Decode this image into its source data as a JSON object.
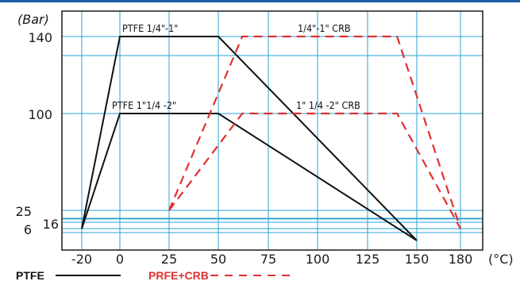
{
  "chart_data": {
    "type": "line",
    "y_unit": "(Bar)",
    "x_unit": "(°C)",
    "x_ticks": [
      "-20",
      "0",
      "25",
      "50",
      "75",
      "100",
      "125",
      "150",
      "180"
    ],
    "y_ticks": [
      "140",
      "100",
      "25",
      "16",
      "6"
    ],
    "xlim": [
      -20,
      180
    ],
    "ylim": [
      0,
      150
    ],
    "colors": {
      "ptfe": "#111111",
      "crb": "#e03030",
      "grid": "#29a3d6",
      "frame": "#1a1a1a",
      "top_rule": "#1f5fa8"
    },
    "series": [
      {
        "name": "PTFE 1/4\"-1\"",
        "group": "ptfe",
        "points": [
          [
            -20,
            6
          ],
          [
            0,
            140
          ],
          [
            50,
            140
          ],
          [
            150,
            0
          ]
        ]
      },
      {
        "name": "PTFE 1\"1/4 -2\"",
        "group": "ptfe",
        "points": [
          [
            -20,
            6
          ],
          [
            0,
            100
          ],
          [
            50,
            100
          ],
          [
            150,
            0
          ]
        ]
      },
      {
        "name": "1/4\"-1\" CRB",
        "group": "crb",
        "points": [
          [
            25,
            25
          ],
          [
            62,
            140
          ],
          [
            140,
            140
          ],
          [
            180,
            6
          ]
        ]
      },
      {
        "name": "1\" 1/4 -2\" CRB",
        "group": "crb",
        "points": [
          [
            25,
            25
          ],
          [
            62,
            100
          ],
          [
            140,
            100
          ],
          [
            180,
            6
          ]
        ]
      }
    ],
    "legend": [
      {
        "label": "PTFE",
        "group": "ptfe"
      },
      {
        "label": "PRFE+CRB",
        "group": "crb"
      }
    ],
    "grid": true
  }
}
